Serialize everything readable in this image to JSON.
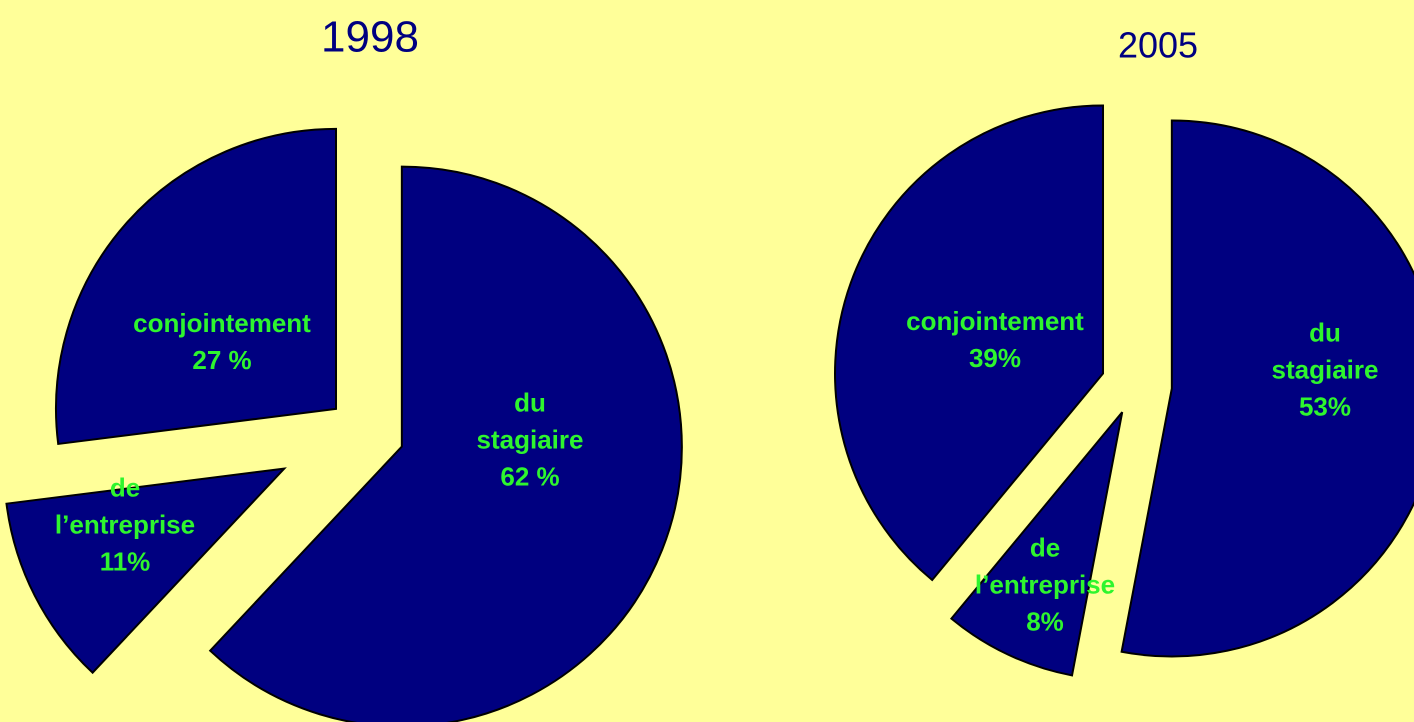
{
  "chart_data": [
    {
      "type": "pie",
      "title": "1998",
      "categories": [
        "du stagiaire",
        "de l’entreprise",
        "conjointement"
      ],
      "values": [
        62,
        11,
        27
      ],
      "value_labels": [
        "62 %",
        "11%",
        "27 %"
      ],
      "color": "#000080"
    },
    {
      "type": "pie",
      "title": "2005",
      "categories": [
        "du stagiaire",
        "de l’entreprise",
        "conjointement"
      ],
      "values": [
        53,
        8,
        39
      ],
      "value_labels": [
        "53%",
        "8%",
        "39%"
      ],
      "color": "#000080"
    }
  ]
}
